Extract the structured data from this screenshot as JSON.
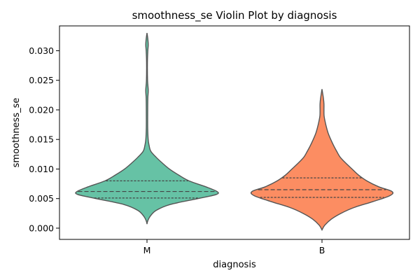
{
  "chart_data": {
    "type": "violin",
    "title": "smoothness_se Violin Plot by diagnosis",
    "xlabel": "diagnosis",
    "ylabel": "smoothness_se",
    "categories": [
      "M",
      "B"
    ],
    "ylim": [
      -0.0019,
      0.0342
    ],
    "yticks": [
      0.0,
      0.005,
      0.01,
      0.015,
      0.02,
      0.025,
      0.03
    ],
    "ytick_labels": [
      "0.000",
      "0.005",
      "0.010",
      "0.015",
      "0.020",
      "0.025",
      "0.030"
    ],
    "grid": false,
    "inner": "quartile",
    "violins": [
      {
        "category": "M",
        "color": "#66c2a5",
        "range": [
          0.0007,
          0.033
        ],
        "quartiles": [
          0.0051,
          0.0062,
          0.008
        ],
        "density": [
          [
            0.0007,
            0.0
          ],
          [
            0.0012,
            0.01
          ],
          [
            0.002,
            0.045
          ],
          [
            0.003,
            0.13
          ],
          [
            0.004,
            0.33
          ],
          [
            0.005,
            0.73
          ],
          [
            0.0057,
            0.99
          ],
          [
            0.0062,
            1.0
          ],
          [
            0.007,
            0.84
          ],
          [
            0.008,
            0.6
          ],
          [
            0.009,
            0.45
          ],
          [
            0.01,
            0.32
          ],
          [
            0.011,
            0.22
          ],
          [
            0.012,
            0.13
          ],
          [
            0.013,
            0.055
          ],
          [
            0.014,
            0.03
          ],
          [
            0.015,
            0.017
          ],
          [
            0.017,
            0.01
          ],
          [
            0.02,
            0.01
          ],
          [
            0.022,
            0.012
          ],
          [
            0.0233,
            0.018
          ],
          [
            0.025,
            0.008
          ],
          [
            0.028,
            0.006
          ],
          [
            0.03,
            0.012
          ],
          [
            0.031,
            0.018
          ],
          [
            0.032,
            0.012
          ],
          [
            0.033,
            0.0
          ]
        ]
      },
      {
        "category": "B",
        "color": "#fc8d62",
        "range": [
          -0.0003,
          0.0235
        ],
        "quartiles": [
          0.0052,
          0.0065,
          0.0085
        ],
        "density": [
          [
            -0.0003,
            0.0
          ],
          [
            0.0005,
            0.04
          ],
          [
            0.0015,
            0.13
          ],
          [
            0.0025,
            0.27
          ],
          [
            0.0035,
            0.46
          ],
          [
            0.0045,
            0.73
          ],
          [
            0.0055,
            0.97
          ],
          [
            0.0062,
            1.0
          ],
          [
            0.007,
            0.81
          ],
          [
            0.008,
            0.64
          ],
          [
            0.009,
            0.52
          ],
          [
            0.01,
            0.43
          ],
          [
            0.011,
            0.34
          ],
          [
            0.012,
            0.26
          ],
          [
            0.013,
            0.21
          ],
          [
            0.014,
            0.165
          ],
          [
            0.015,
            0.125
          ],
          [
            0.016,
            0.09
          ],
          [
            0.017,
            0.065
          ],
          [
            0.018,
            0.045
          ],
          [
            0.019,
            0.03
          ],
          [
            0.02,
            0.028
          ],
          [
            0.021,
            0.028
          ],
          [
            0.022,
            0.02
          ],
          [
            0.0235,
            0.0
          ]
        ]
      }
    ]
  }
}
